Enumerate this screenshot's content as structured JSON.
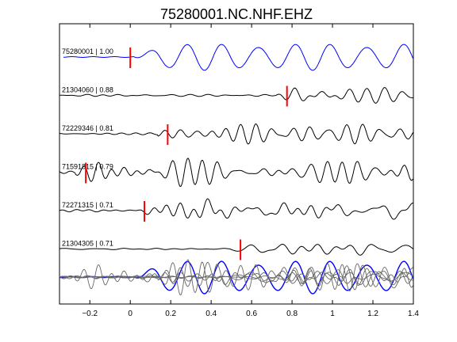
{
  "chart_data": {
    "type": "line",
    "title": "75280001.NC.NHF.EHZ",
    "xlabel": "",
    "ylabel": "",
    "xlim": [
      -0.35,
      1.4
    ],
    "xticks": [
      -0.2,
      0,
      0.2,
      0.4,
      0.6,
      0.8,
      1,
      1.2,
      1.4
    ],
    "xtick_labels": [
      "−0.2",
      "0",
      "0.2",
      "0.4",
      "0.6",
      "0.8",
      "1",
      "1.2",
      "1.4"
    ],
    "grid": false,
    "legend": false,
    "colors": {
      "reference": "#0000ff",
      "trace": "#000000",
      "overlay": "#666666",
      "pick": "#ff0000"
    },
    "traces": [
      {
        "label": "75280001 | 1.00",
        "pick": 0.0,
        "reference": true,
        "seed": 3,
        "amp": 1.0
      },
      {
        "label": "21304060 | 0.88",
        "pick": 0.775,
        "reference": false,
        "seed": 11,
        "amp": 0.85
      },
      {
        "label": "72229346 | 0.81",
        "pick": 0.185,
        "reference": false,
        "seed": 23,
        "amp": 0.8
      },
      {
        "label": "71591815 | 0.79",
        "pick": -0.22,
        "reference": false,
        "seed": 37,
        "amp": 0.95
      },
      {
        "label": "72271315 | 0.71",
        "pick": 0.07,
        "reference": false,
        "seed": 51,
        "amp": 0.75
      },
      {
        "label": "21304305 | 0.71",
        "pick": 0.545,
        "reference": false,
        "seed": 67,
        "amp": 0.85
      }
    ]
  }
}
